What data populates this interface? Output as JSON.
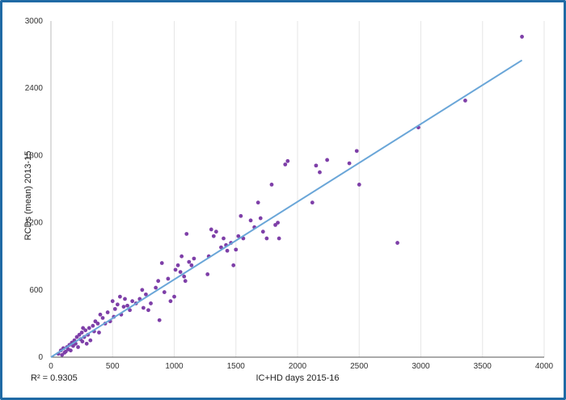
{
  "chart_data": {
    "type": "scatter",
    "xlabel": "IC+HD days 2015-16",
    "ylabel": "RCDs (mean) 2013-15",
    "xlim": [
      0,
      4000
    ],
    "ylim": [
      0,
      3000
    ],
    "x_ticks": [
      "0",
      "500",
      "1000",
      "1500",
      "2000",
      "2500",
      "3000",
      "3500",
      "4000"
    ],
    "y_ticks": [
      "0",
      "600",
      "1200",
      "1800",
      "2400",
      "3000"
    ],
    "grid": "vertical",
    "annotation": "R² = 0.9305",
    "colors": {
      "points": "#7e3fa8",
      "trendline": "#6aa6d8",
      "frame": "#1f6aa5"
    },
    "trendline": {
      "type": "linear",
      "from": [
        0,
        0
      ],
      "to": [
        3820,
        2650
      ]
    },
    "points": [
      [
        60,
        30
      ],
      [
        80,
        60
      ],
      [
        90,
        20
      ],
      [
        100,
        80
      ],
      [
        110,
        40
      ],
      [
        120,
        50
      ],
      [
        130,
        90
      ],
      [
        140,
        70
      ],
      [
        150,
        110
      ],
      [
        160,
        60
      ],
      [
        170,
        130
      ],
      [
        180,
        100
      ],
      [
        190,
        150
      ],
      [
        200,
        120
      ],
      [
        210,
        180
      ],
      [
        220,
        90
      ],
      [
        230,
        200
      ],
      [
        240,
        160
      ],
      [
        250,
        220
      ],
      [
        255,
        140
      ],
      [
        260,
        260
      ],
      [
        270,
        180
      ],
      [
        280,
        240
      ],
      [
        290,
        120
      ],
      [
        300,
        200
      ],
      [
        310,
        260
      ],
      [
        320,
        150
      ],
      [
        340,
        280
      ],
      [
        350,
        230
      ],
      [
        360,
        320
      ],
      [
        380,
        300
      ],
      [
        390,
        220
      ],
      [
        400,
        380
      ],
      [
        420,
        350
      ],
      [
        440,
        300
      ],
      [
        460,
        400
      ],
      [
        480,
        320
      ],
      [
        500,
        500
      ],
      [
        510,
        360
      ],
      [
        520,
        430
      ],
      [
        540,
        470
      ],
      [
        560,
        540
      ],
      [
        570,
        380
      ],
      [
        590,
        450
      ],
      [
        600,
        520
      ],
      [
        620,
        460
      ],
      [
        640,
        420
      ],
      [
        660,
        500
      ],
      [
        690,
        480
      ],
      [
        720,
        520
      ],
      [
        740,
        600
      ],
      [
        750,
        440
      ],
      [
        770,
        560
      ],
      [
        790,
        420
      ],
      [
        810,
        480
      ],
      [
        850,
        620
      ],
      [
        870,
        680
      ],
      [
        880,
        330
      ],
      [
        900,
        840
      ],
      [
        920,
        580
      ],
      [
        950,
        700
      ],
      [
        970,
        500
      ],
      [
        1000,
        540
      ],
      [
        1010,
        780
      ],
      [
        1030,
        820
      ],
      [
        1050,
        760
      ],
      [
        1060,
        900
      ],
      [
        1080,
        720
      ],
      [
        1090,
        680
      ],
      [
        1100,
        1100
      ],
      [
        1120,
        850
      ],
      [
        1140,
        820
      ],
      [
        1160,
        880
      ],
      [
        1270,
        740
      ],
      [
        1280,
        900
      ],
      [
        1300,
        1140
      ],
      [
        1320,
        1080
      ],
      [
        1340,
        1120
      ],
      [
        1380,
        980
      ],
      [
        1400,
        1060
      ],
      [
        1420,
        1000
      ],
      [
        1430,
        950
      ],
      [
        1460,
        1020
      ],
      [
        1480,
        820
      ],
      [
        1500,
        960
      ],
      [
        1520,
        1080
      ],
      [
        1540,
        1260
      ],
      [
        1560,
        1060
      ],
      [
        1620,
        1220
      ],
      [
        1650,
        1160
      ],
      [
        1680,
        1380
      ],
      [
        1700,
        1240
      ],
      [
        1720,
        1120
      ],
      [
        1750,
        1060
      ],
      [
        1790,
        1540
      ],
      [
        1820,
        1180
      ],
      [
        1840,
        1200
      ],
      [
        1850,
        1060
      ],
      [
        1900,
        1720
      ],
      [
        1920,
        1750
      ],
      [
        2120,
        1380
      ],
      [
        2150,
        1710
      ],
      [
        2180,
        1650
      ],
      [
        2240,
        1760
      ],
      [
        2420,
        1730
      ],
      [
        2480,
        1840
      ],
      [
        2500,
        1540
      ],
      [
        2810,
        1020
      ],
      [
        2980,
        2050
      ],
      [
        3360,
        2290
      ],
      [
        3820,
        2860
      ]
    ]
  }
}
